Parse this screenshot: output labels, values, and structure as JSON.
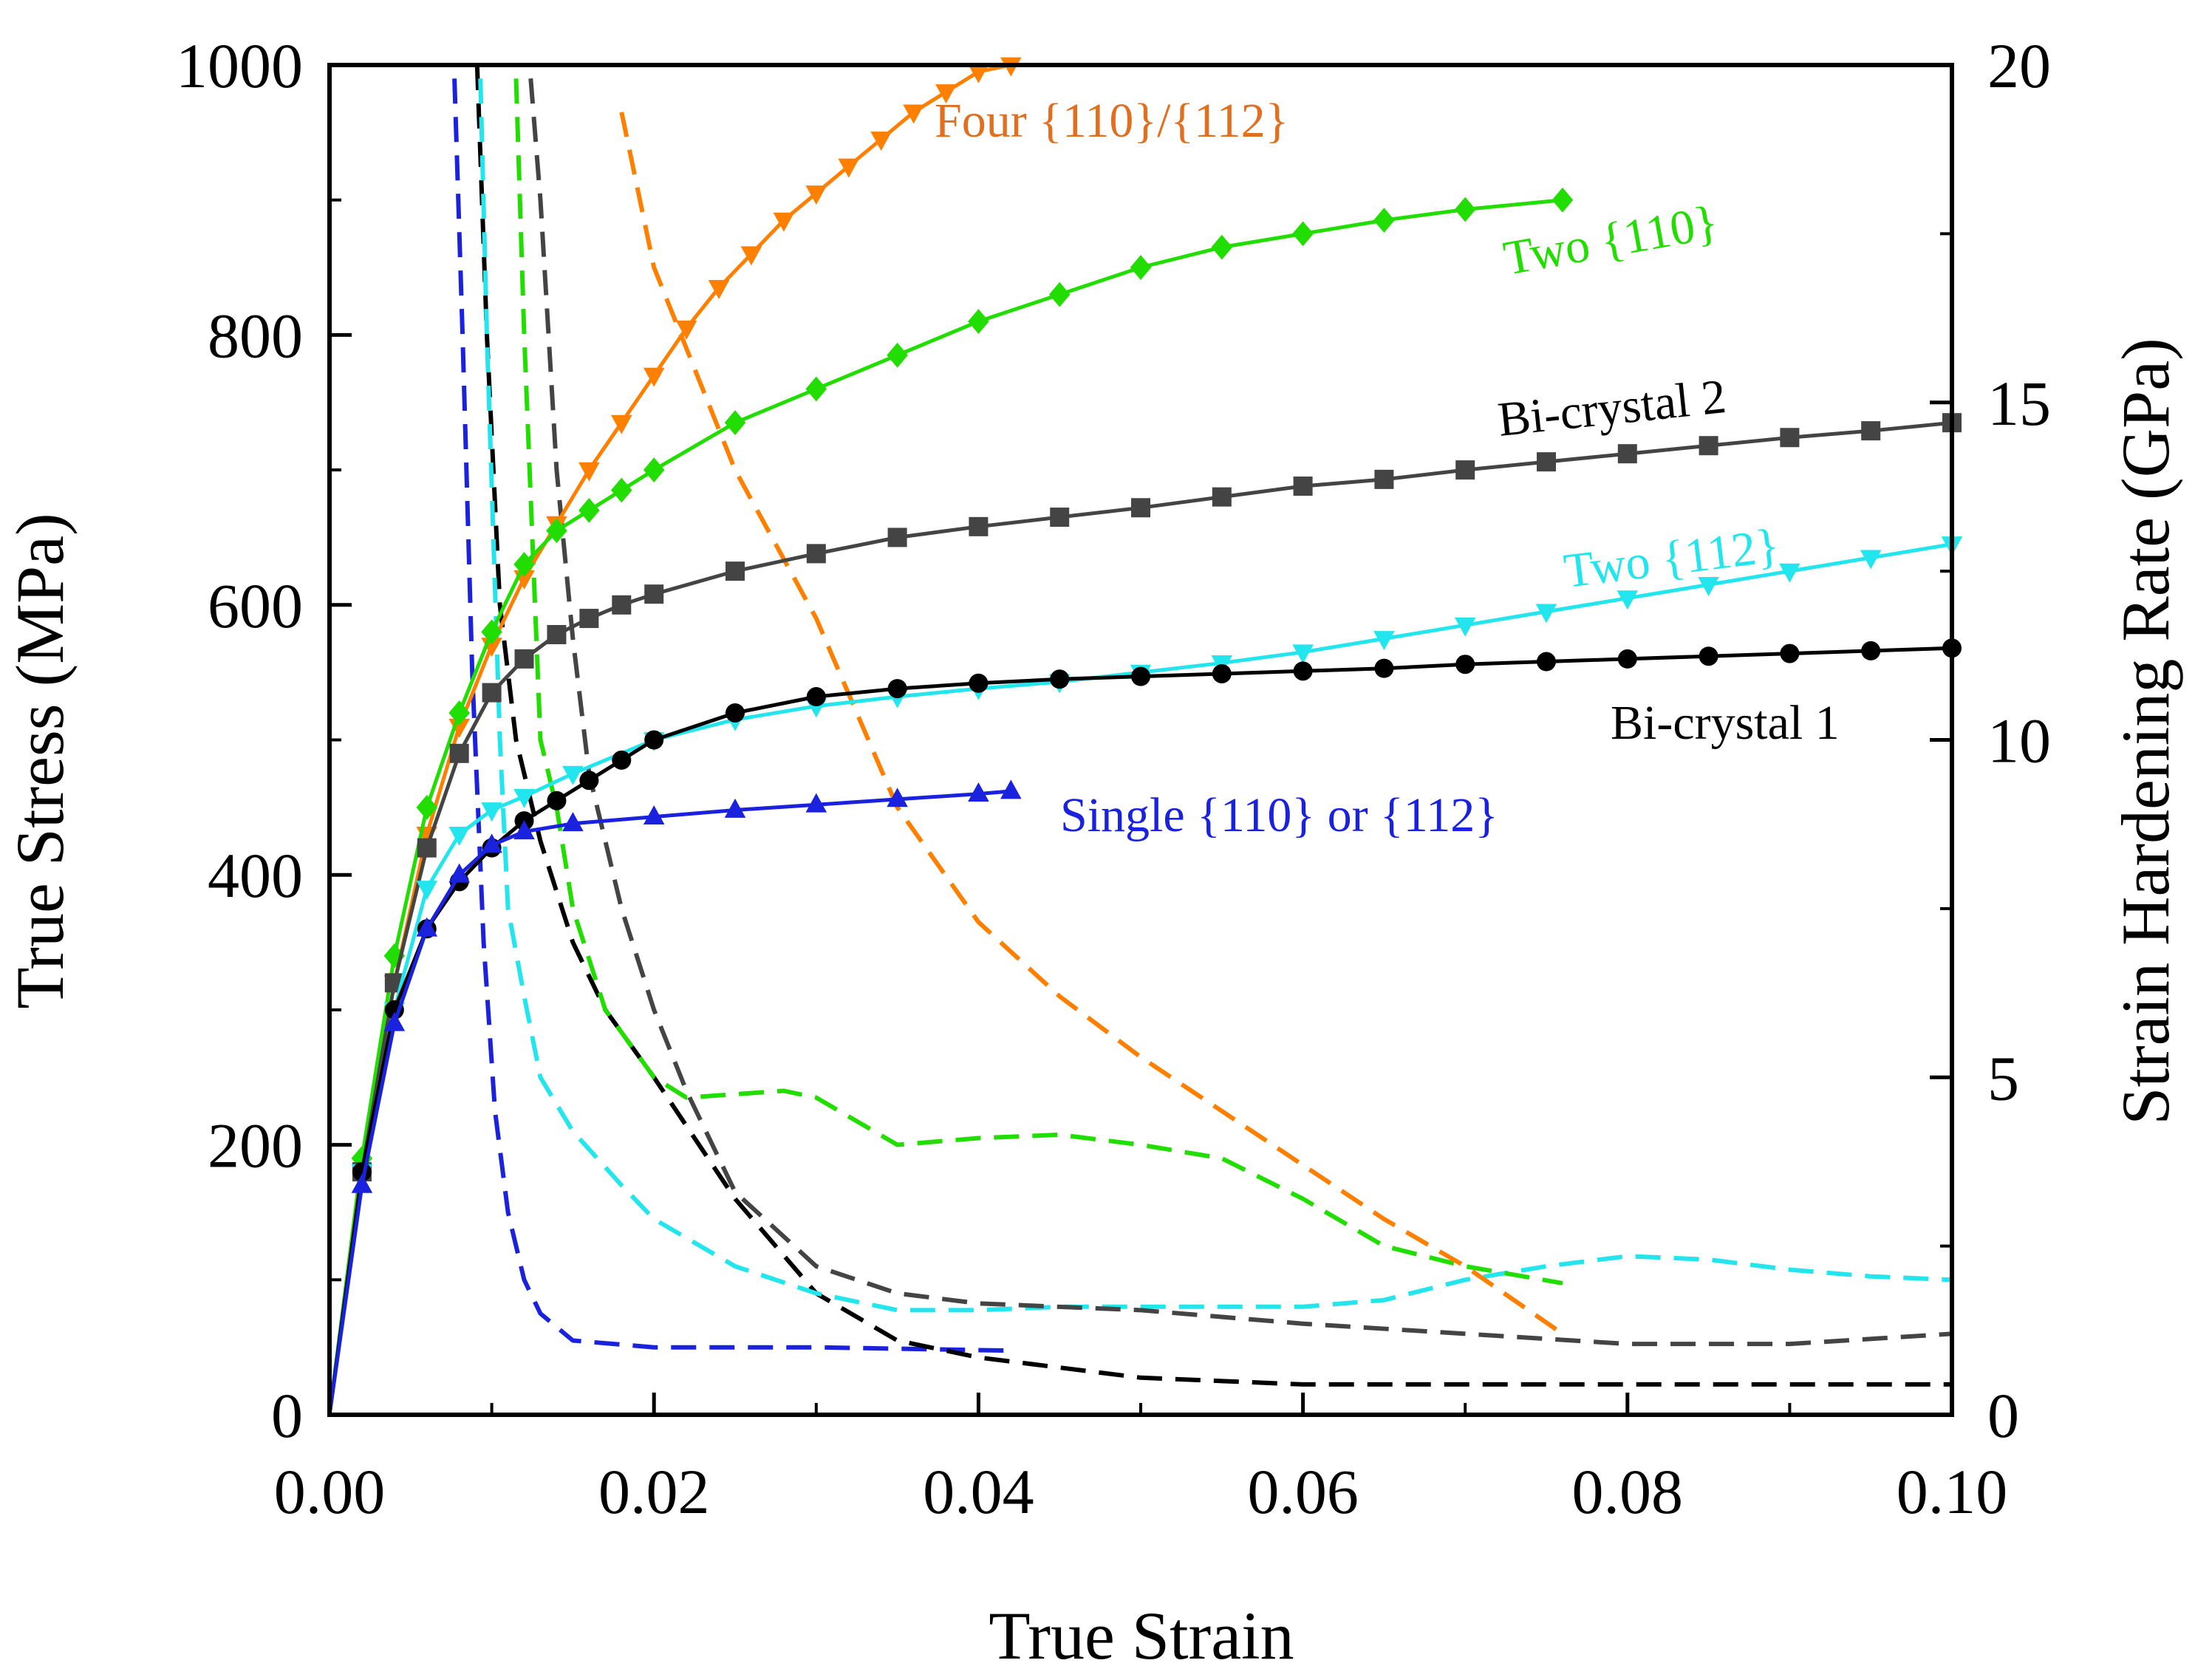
{
  "chart_data": {
    "type": "line",
    "title": "",
    "xlabel": "True Strain",
    "ylabel": "True Stress (MPa)",
    "y2label": "Strain Hardening Rate (GPa)",
    "xlim": [
      0,
      0.1
    ],
    "ylim": [
      0,
      1000
    ],
    "y2lim": [
      0,
      20
    ],
    "xticks": [
      "0.00",
      "0.02",
      "0.04",
      "0.06",
      "0.08",
      "0.10"
    ],
    "yticks": [
      "0",
      "200",
      "400",
      "600",
      "800",
      "1000"
    ],
    "y2ticks": [
      "0",
      "5",
      "10",
      "15",
      "20"
    ],
    "grid": false,
    "series": [
      {
        "name": "Four {110}/{112}",
        "color": "#ff7f00",
        "marker": "tri-down",
        "axis": "left",
        "x": [
          0.0,
          0.002,
          0.004,
          0.006,
          0.008,
          0.01,
          0.012,
          0.014,
          0.016,
          0.018,
          0.02,
          0.022,
          0.024,
          0.026,
          0.028,
          0.03,
          0.032,
          0.034,
          0.036,
          0.038,
          0.04,
          0.042
        ],
        "y": [
          0,
          180,
          320,
          430,
          510,
          570,
          620,
          660,
          700,
          735,
          770,
          805,
          835,
          860,
          885,
          905,
          925,
          945,
          965,
          980,
          995,
          1000
        ]
      },
      {
        "name": "Two {110}",
        "color": "#22dd00",
        "marker": "diamond",
        "axis": "left",
        "x": [
          0.0,
          0.002,
          0.004,
          0.006,
          0.008,
          0.01,
          0.012,
          0.014,
          0.016,
          0.018,
          0.02,
          0.025,
          0.03,
          0.035,
          0.04,
          0.045,
          0.05,
          0.055,
          0.06,
          0.065,
          0.07,
          0.076
        ],
        "y": [
          0,
          190,
          340,
          450,
          520,
          580,
          630,
          655,
          670,
          685,
          700,
          735,
          760,
          785,
          810,
          830,
          850,
          865,
          875,
          885,
          893,
          900
        ]
      },
      {
        "name": "Bi-crystal 2",
        "color": "#444444",
        "marker": "square",
        "axis": "left",
        "x": [
          0.0,
          0.002,
          0.004,
          0.006,
          0.008,
          0.01,
          0.012,
          0.014,
          0.016,
          0.018,
          0.02,
          0.025,
          0.03,
          0.035,
          0.04,
          0.045,
          0.05,
          0.055,
          0.06,
          0.065,
          0.07,
          0.075,
          0.08,
          0.085,
          0.09,
          0.095,
          0.1
        ],
        "y": [
          0,
          180,
          320,
          420,
          490,
          535,
          560,
          578,
          590,
          600,
          608,
          625,
          638,
          650,
          658,
          665,
          672,
          680,
          688,
          693,
          700,
          706,
          712,
          718,
          724,
          729,
          735
        ]
      },
      {
        "name": "Two {112}",
        "color": "#22e5ee",
        "marker": "tri-down",
        "axis": "left",
        "x": [
          0.0,
          0.002,
          0.004,
          0.006,
          0.008,
          0.01,
          0.012,
          0.015,
          0.02,
          0.025,
          0.03,
          0.035,
          0.04,
          0.045,
          0.05,
          0.055,
          0.06,
          0.065,
          0.07,
          0.075,
          0.08,
          0.085,
          0.09,
          0.095,
          0.1
        ],
        "y": [
          0,
          180,
          300,
          390,
          430,
          448,
          458,
          475,
          500,
          515,
          525,
          532,
          538,
          543,
          550,
          557,
          565,
          575,
          585,
          595,
          605,
          615,
          625,
          635,
          645
        ]
      },
      {
        "name": "Bi-crystal 1",
        "color": "#000000",
        "marker": "circle",
        "axis": "left",
        "x": [
          0.0,
          0.002,
          0.004,
          0.006,
          0.008,
          0.01,
          0.012,
          0.014,
          0.016,
          0.018,
          0.02,
          0.025,
          0.03,
          0.035,
          0.04,
          0.045,
          0.05,
          0.055,
          0.06,
          0.065,
          0.07,
          0.075,
          0.08,
          0.085,
          0.09,
          0.095,
          0.1
        ],
        "y": [
          0,
          180,
          300,
          360,
          395,
          420,
          440,
          455,
          470,
          485,
          500,
          520,
          532,
          538,
          542,
          545,
          547,
          549,
          551,
          553,
          556,
          558,
          560,
          562,
          564,
          566,
          568
        ]
      },
      {
        "name": "Single {110} or {112}",
        "color": "#1a22dd",
        "marker": "tri-up",
        "axis": "left",
        "x": [
          0.0,
          0.002,
          0.004,
          0.006,
          0.008,
          0.01,
          0.012,
          0.015,
          0.02,
          0.025,
          0.03,
          0.035,
          0.04,
          0.042
        ],
        "y": [
          0,
          170,
          290,
          360,
          400,
          422,
          432,
          438,
          443,
          448,
          452,
          456,
          460,
          462
        ]
      }
    ],
    "hardening_series": [
      {
        "name": "Single {110} or {112}",
        "color": "#1a22dd",
        "axis": "right",
        "x": [
          0.0077,
          0.0082,
          0.0088,
          0.0095,
          0.0102,
          0.011,
          0.012,
          0.013,
          0.015,
          0.02,
          0.03,
          0.042
        ],
        "y": [
          19.8,
          16.0,
          11.0,
          7.0,
          4.5,
          3.0,
          2.0,
          1.5,
          1.1,
          1.0,
          1.0,
          0.95
        ]
      },
      {
        "name": "Bi-crystal 1",
        "color": "#000000",
        "axis": "right",
        "x": [
          0.0091,
          0.0097,
          0.0105,
          0.0115,
          0.013,
          0.015,
          0.017,
          0.02,
          0.025,
          0.03,
          0.035,
          0.04,
          0.05,
          0.06,
          0.07,
          0.08,
          0.09,
          0.1
        ],
        "y": [
          20.0,
          16.0,
          12.0,
          10.0,
          8.5,
          7.0,
          6.0,
          5.0,
          3.2,
          1.8,
          1.1,
          0.85,
          0.55,
          0.45,
          0.45,
          0.45,
          0.45,
          0.45
        ]
      },
      {
        "name": "Two {112}",
        "color": "#22e5ee",
        "axis": "right",
        "x": [
          0.0093,
          0.0097,
          0.0101,
          0.0105,
          0.011,
          0.012,
          0.013,
          0.015,
          0.018,
          0.02,
          0.025,
          0.03,
          0.035,
          0.04,
          0.045,
          0.05,
          0.055,
          0.06,
          0.065,
          0.07,
          0.075,
          0.08,
          0.085,
          0.09,
          0.095,
          0.1
        ],
        "y": [
          19.8,
          16.0,
          13.0,
          10.0,
          7.5,
          6.2,
          5.0,
          4.2,
          3.4,
          2.9,
          2.2,
          1.8,
          1.55,
          1.55,
          1.6,
          1.6,
          1.6,
          1.6,
          1.7,
          2.0,
          2.2,
          2.35,
          2.3,
          2.15,
          2.05,
          2.0
        ]
      },
      {
        "name": "Two {110}",
        "color": "#22dd00",
        "axis": "right",
        "x": [
          0.0115,
          0.012,
          0.0125,
          0.013,
          0.014,
          0.015,
          0.017,
          0.02,
          0.022,
          0.025,
          0.028,
          0.03,
          0.035,
          0.04,
          0.045,
          0.05,
          0.055,
          0.06,
          0.065,
          0.07,
          0.076
        ],
        "y": [
          19.8,
          16.0,
          13.0,
          10.0,
          9.0,
          7.5,
          6.0,
          5.0,
          4.7,
          4.75,
          4.8,
          4.7,
          4.0,
          4.1,
          4.15,
          4.0,
          3.8,
          3.2,
          2.5,
          2.2,
          1.95
        ]
      },
      {
        "name": "Bi-crystal 2",
        "color": "#444444",
        "axis": "right",
        "x": [
          0.0124,
          0.013,
          0.0135,
          0.014,
          0.015,
          0.016,
          0.018,
          0.02,
          0.022,
          0.025,
          0.03,
          0.035,
          0.04,
          0.05,
          0.06,
          0.07,
          0.08,
          0.09,
          0.1
        ],
        "y": [
          19.8,
          18.0,
          16.0,
          14.0,
          11.5,
          9.5,
          7.5,
          6.0,
          4.8,
          3.3,
          2.2,
          1.8,
          1.65,
          1.55,
          1.35,
          1.2,
          1.05,
          1.05,
          1.2
        ]
      },
      {
        "name": "Four {110}/{112}",
        "color": "#ff7f00",
        "axis": "right",
        "x": [
          0.018,
          0.02,
          0.025,
          0.03,
          0.035,
          0.04,
          0.045,
          0.05,
          0.055,
          0.06,
          0.065,
          0.07,
          0.076
        ],
        "y": [
          19.3,
          17.0,
          14.0,
          11.8,
          9.0,
          7.3,
          6.2,
          5.3,
          4.5,
          3.7,
          2.9,
          2.2,
          1.2
        ]
      }
    ],
    "annotations": [
      {
        "text": "Four {110}/{112}",
        "color": "#e07020"
      },
      {
        "text": "Two {110}",
        "color": "#22dd00"
      },
      {
        "text": "Bi-crystal 2",
        "color": "#000000"
      },
      {
        "text": "Two {112}",
        "color": "#22e5ee"
      },
      {
        "text": "Bi-crystal 1",
        "color": "#000000"
      },
      {
        "text": "Single {110} or {112}",
        "color": "#1a22dd"
      }
    ]
  }
}
